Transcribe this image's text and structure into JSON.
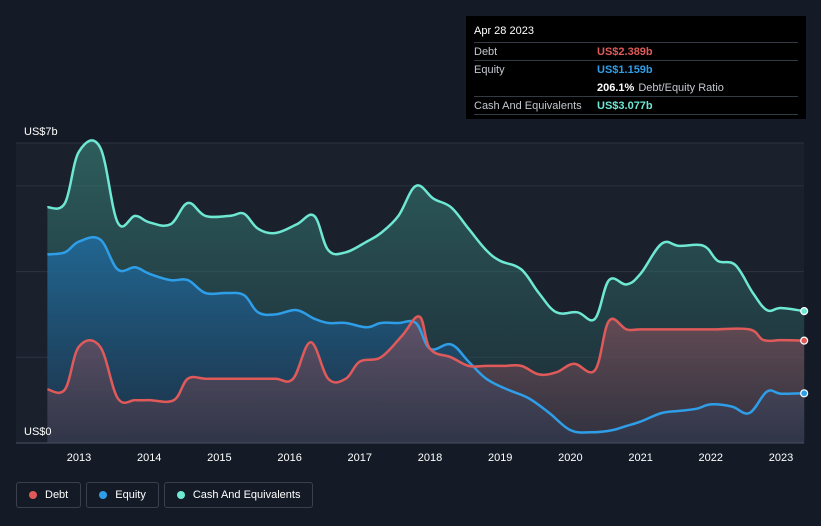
{
  "chart_data": {
    "type": "area",
    "title": "",
    "xlabel": "",
    "ylabel": "",
    "y_top_label": "US$7b",
    "y_bottom_label": "US$0",
    "ylim": [
      0,
      7
    ],
    "xlim": [
      2012.55,
      2023.33
    ],
    "x_ticks": [
      {
        "x": 2013,
        "label": "2013"
      },
      {
        "x": 2014,
        "label": "2014"
      },
      {
        "x": 2015,
        "label": "2015"
      },
      {
        "x": 2016,
        "label": "2016"
      },
      {
        "x": 2017,
        "label": "2017"
      },
      {
        "x": 2018,
        "label": "2018"
      },
      {
        "x": 2019,
        "label": "2019"
      },
      {
        "x": 2020,
        "label": "2020"
      },
      {
        "x": 2021,
        "label": "2021"
      },
      {
        "x": 2022,
        "label": "2022"
      },
      {
        "x": 2023,
        "label": "2023"
      }
    ],
    "y_grid": [
      7,
      6,
      4,
      2
    ],
    "series": [
      {
        "name": "Cash And Equivalents",
        "color": "#6ee7d3",
        "points": [
          [
            2012.55,
            5.5
          ],
          [
            2012.8,
            5.6
          ],
          [
            2013.0,
            6.8
          ],
          [
            2013.3,
            6.9
          ],
          [
            2013.55,
            5.15
          ],
          [
            2013.8,
            5.3
          ],
          [
            2014.0,
            5.15
          ],
          [
            2014.3,
            5.1
          ],
          [
            2014.55,
            5.6
          ],
          [
            2014.8,
            5.3
          ],
          [
            2015.15,
            5.3
          ],
          [
            2015.35,
            5.35
          ],
          [
            2015.55,
            5.0
          ],
          [
            2015.8,
            4.9
          ],
          [
            2016.1,
            5.1
          ],
          [
            2016.35,
            5.3
          ],
          [
            2016.55,
            4.5
          ],
          [
            2016.8,
            4.45
          ],
          [
            2017.1,
            4.7
          ],
          [
            2017.3,
            4.9
          ],
          [
            2017.55,
            5.3
          ],
          [
            2017.8,
            6.0
          ],
          [
            2018.05,
            5.7
          ],
          [
            2018.3,
            5.5
          ],
          [
            2018.55,
            5.0
          ],
          [
            2018.8,
            4.5
          ],
          [
            2019.0,
            4.25
          ],
          [
            2019.3,
            4.05
          ],
          [
            2019.55,
            3.5
          ],
          [
            2019.8,
            3.05
          ],
          [
            2020.1,
            3.05
          ],
          [
            2020.35,
            2.9
          ],
          [
            2020.55,
            3.8
          ],
          [
            2020.8,
            3.7
          ],
          [
            2021.0,
            3.95
          ],
          [
            2021.3,
            4.65
          ],
          [
            2021.55,
            4.6
          ],
          [
            2021.9,
            4.6
          ],
          [
            2022.1,
            4.25
          ],
          [
            2022.35,
            4.15
          ],
          [
            2022.6,
            3.5
          ],
          [
            2022.8,
            3.1
          ],
          [
            2023.0,
            3.15
          ],
          [
            2023.33,
            3.077
          ]
        ]
      },
      {
        "name": "Equity",
        "color": "#2f9ee8",
        "points": [
          [
            2012.55,
            4.4
          ],
          [
            2012.8,
            4.45
          ],
          [
            2013.0,
            4.7
          ],
          [
            2013.3,
            4.75
          ],
          [
            2013.55,
            4.05
          ],
          [
            2013.8,
            4.1
          ],
          [
            2014.0,
            3.95
          ],
          [
            2014.3,
            3.8
          ],
          [
            2014.55,
            3.8
          ],
          [
            2014.8,
            3.5
          ],
          [
            2015.1,
            3.5
          ],
          [
            2015.35,
            3.45
          ],
          [
            2015.55,
            3.05
          ],
          [
            2015.8,
            3.0
          ],
          [
            2016.1,
            3.1
          ],
          [
            2016.35,
            2.9
          ],
          [
            2016.55,
            2.8
          ],
          [
            2016.8,
            2.8
          ],
          [
            2017.1,
            2.7
          ],
          [
            2017.3,
            2.8
          ],
          [
            2017.55,
            2.8
          ],
          [
            2017.8,
            2.8
          ],
          [
            2018.0,
            2.2
          ],
          [
            2018.3,
            2.3
          ],
          [
            2018.55,
            1.9
          ],
          [
            2018.8,
            1.5
          ],
          [
            2019.1,
            1.25
          ],
          [
            2019.4,
            1.05
          ],
          [
            2019.7,
            0.7
          ],
          [
            2020.0,
            0.3
          ],
          [
            2020.3,
            0.25
          ],
          [
            2020.6,
            0.3
          ],
          [
            2020.8,
            0.4
          ],
          [
            2021.0,
            0.5
          ],
          [
            2021.3,
            0.7
          ],
          [
            2021.55,
            0.75
          ],
          [
            2021.8,
            0.8
          ],
          [
            2022.0,
            0.9
          ],
          [
            2022.3,
            0.85
          ],
          [
            2022.55,
            0.7
          ],
          [
            2022.8,
            1.2
          ],
          [
            2023.0,
            1.15
          ],
          [
            2023.33,
            1.159
          ]
        ]
      },
      {
        "name": "Debt",
        "color": "#e05a5a",
        "points": [
          [
            2012.55,
            1.25
          ],
          [
            2012.8,
            1.25
          ],
          [
            2013.0,
            2.25
          ],
          [
            2013.3,
            2.25
          ],
          [
            2013.55,
            1.05
          ],
          [
            2013.8,
            1.0
          ],
          [
            2014.0,
            1.0
          ],
          [
            2014.35,
            1.0
          ],
          [
            2014.55,
            1.5
          ],
          [
            2014.8,
            1.5
          ],
          [
            2015.1,
            1.5
          ],
          [
            2015.5,
            1.5
          ],
          [
            2015.8,
            1.5
          ],
          [
            2016.05,
            1.5
          ],
          [
            2016.3,
            2.35
          ],
          [
            2016.55,
            1.5
          ],
          [
            2016.8,
            1.5
          ],
          [
            2017.0,
            1.9
          ],
          [
            2017.3,
            2.0
          ],
          [
            2017.6,
            2.5
          ],
          [
            2017.85,
            2.95
          ],
          [
            2018.0,
            2.2
          ],
          [
            2018.3,
            2.0
          ],
          [
            2018.55,
            1.8
          ],
          [
            2018.8,
            1.8
          ],
          [
            2019.05,
            1.8
          ],
          [
            2019.3,
            1.8
          ],
          [
            2019.55,
            1.6
          ],
          [
            2019.8,
            1.65
          ],
          [
            2020.05,
            1.85
          ],
          [
            2020.35,
            1.7
          ],
          [
            2020.55,
            2.85
          ],
          [
            2020.8,
            2.65
          ],
          [
            2021.0,
            2.65
          ],
          [
            2021.5,
            2.65
          ],
          [
            2022.0,
            2.65
          ],
          [
            2022.55,
            2.65
          ],
          [
            2022.75,
            2.4
          ],
          [
            2023.0,
            2.4
          ],
          [
            2023.33,
            2.389
          ]
        ]
      }
    ]
  },
  "tooltip": {
    "date": "Apr 28 2023",
    "debt_label": "Debt",
    "debt_value": "US$2.389b",
    "equity_label": "Equity",
    "equity_value": "US$1.159b",
    "ratio_value": "206.1%",
    "ratio_label": "Debt/Equity Ratio",
    "cash_label": "Cash And Equivalents",
    "cash_value": "US$3.077b"
  },
  "legend": {
    "debt": "Debt",
    "equity": "Equity",
    "cash": "Cash And Equivalents"
  },
  "colors": {
    "debt": "#e05a5a",
    "equity": "#2f9ee8",
    "cash": "#6ee7d3"
  }
}
